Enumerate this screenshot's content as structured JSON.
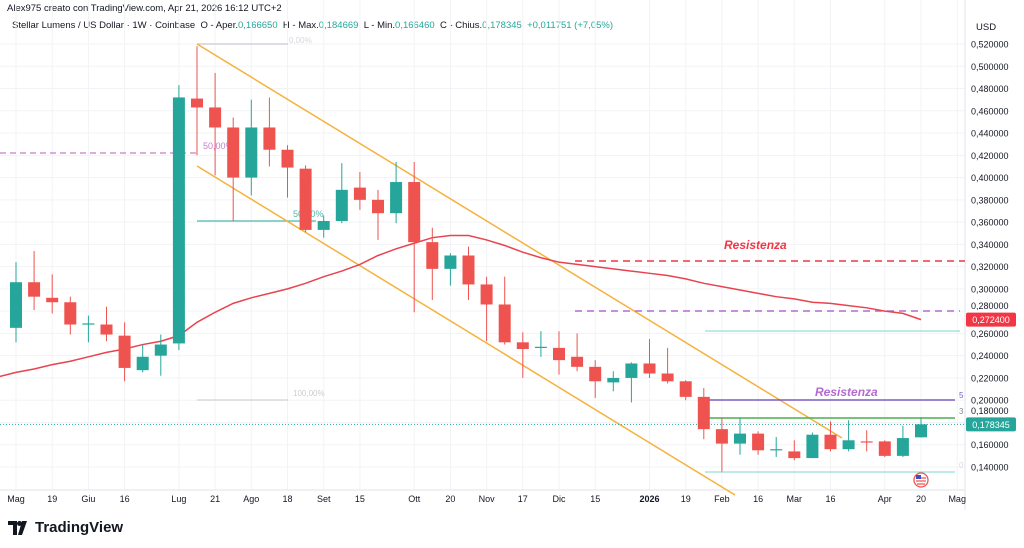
{
  "header": {
    "credit": "Alex975 creato con TradingView.com, Apr 21, 2026 16:12 UTC+2",
    "symbol": "Stellar Lumens / US Dollar · 1W · Coinbase",
    "open_label": "O - Aper.",
    "open": "0,166650",
    "high_label": "H - Max.",
    "high": "0,184669",
    "low_label": "L - Min.",
    "low": "0,166460",
    "close_label": "C - Chius.",
    "close": "0,178345",
    "change": "+0,011751 (+7,05%)"
  },
  "currency": "USD",
  "brand": "TradingView",
  "colors": {
    "up": "#26a69a",
    "down": "#ef5350",
    "ma": "#e8434f",
    "channel": "#f6b13d",
    "resistance_red": "#f23645",
    "resistance_purple": "#b46bd0",
    "fib_purple": "#c77dc9",
    "green_line": "#4caf50",
    "teal_line": "#7fd4cb"
  },
  "chart_data": {
    "type": "candlestick",
    "title": "",
    "ylim": [
      0.13,
      0.525
    ],
    "y_ticks": [
      "0,140000",
      "0,160000",
      "0,180000",
      "0,200000",
      "0,220000",
      "0,240000",
      "0,260000",
      "0,280000",
      "0,300000",
      "0,320000",
      "0,340000",
      "0,360000",
      "0,380000",
      "0,400000",
      "0,420000",
      "0,440000",
      "0,460000",
      "0,480000",
      "0,500000",
      "0,520000"
    ],
    "y_tick_values": [
      0.14,
      0.16,
      0.18,
      0.2,
      0.22,
      0.24,
      0.26,
      0.28,
      0.3,
      0.32,
      0.34,
      0.36,
      0.38,
      0.4,
      0.42,
      0.44,
      0.46,
      0.48,
      0.5,
      0.52
    ],
    "x_ticks": [
      {
        "label": "Mag",
        "candle": 0
      },
      {
        "label": "19",
        "candle": 2
      },
      {
        "label": "Giu",
        "candle": 4
      },
      {
        "label": "16",
        "candle": 6
      },
      {
        "label": "Lug",
        "candle": 9
      },
      {
        "label": "21",
        "candle": 11
      },
      {
        "label": "Ago",
        "candle": 13
      },
      {
        "label": "18",
        "candle": 15
      },
      {
        "label": "Set",
        "candle": 17
      },
      {
        "label": "15",
        "candle": 19
      },
      {
        "label": "Ott",
        "candle": 22
      },
      {
        "label": "20",
        "candle": 24
      },
      {
        "label": "Nov",
        "candle": 26
      },
      {
        "label": "17",
        "candle": 28
      },
      {
        "label": "Dic",
        "candle": 30
      },
      {
        "label": "15",
        "candle": 32
      },
      {
        "label": "2026",
        "candle": 35,
        "bold": true
      },
      {
        "label": "19",
        "candle": 37
      },
      {
        "label": "Feb",
        "candle": 39
      },
      {
        "label": "16",
        "candle": 41
      },
      {
        "label": "Mar",
        "candle": 43
      },
      {
        "label": "16",
        "candle": 45
      },
      {
        "label": "Apr",
        "candle": 48
      },
      {
        "label": "20",
        "candle": 50
      },
      {
        "label": "Mag",
        "candle": 52
      }
    ],
    "candles": [
      [
        0.265,
        0.324,
        0.252,
        0.306
      ],
      [
        0.306,
        0.334,
        0.281,
        0.293
      ],
      [
        0.292,
        0.313,
        0.278,
        0.288
      ],
      [
        0.288,
        0.293,
        0.259,
        0.268
      ],
      [
        0.268,
        0.276,
        0.252,
        0.269
      ],
      [
        0.268,
        0.284,
        0.253,
        0.259
      ],
      [
        0.258,
        0.27,
        0.217,
        0.229
      ],
      [
        0.227,
        0.25,
        0.225,
        0.239
      ],
      [
        0.24,
        0.259,
        0.222,
        0.25
      ],
      [
        0.251,
        0.483,
        0.245,
        0.472
      ],
      [
        0.471,
        0.518,
        0.42,
        0.463
      ],
      [
        0.463,
        0.494,
        0.402,
        0.445
      ],
      [
        0.445,
        0.454,
        0.361,
        0.4
      ],
      [
        0.4,
        0.47,
        0.384,
        0.445
      ],
      [
        0.445,
        0.472,
        0.41,
        0.425
      ],
      [
        0.425,
        0.429,
        0.382,
        0.409
      ],
      [
        0.408,
        0.411,
        0.351,
        0.353
      ],
      [
        0.353,
        0.366,
        0.346,
        0.361
      ],
      [
        0.361,
        0.413,
        0.359,
        0.389
      ],
      [
        0.391,
        0.405,
        0.371,
        0.38
      ],
      [
        0.38,
        0.389,
        0.344,
        0.368
      ],
      [
        0.368,
        0.414,
        0.359,
        0.396
      ],
      [
        0.396,
        0.414,
        0.279,
        0.342
      ],
      [
        0.342,
        0.355,
        0.29,
        0.318
      ],
      [
        0.318,
        0.332,
        0.303,
        0.33
      ],
      [
        0.33,
        0.338,
        0.29,
        0.304
      ],
      [
        0.304,
        0.311,
        0.253,
        0.286
      ],
      [
        0.286,
        0.311,
        0.25,
        0.252
      ],
      [
        0.252,
        0.261,
        0.22,
        0.246
      ],
      [
        0.247,
        0.262,
        0.239,
        0.248
      ],
      [
        0.247,
        0.262,
        0.223,
        0.236
      ],
      [
        0.239,
        0.26,
        0.226,
        0.23
      ],
      [
        0.23,
        0.236,
        0.202,
        0.217
      ],
      [
        0.216,
        0.226,
        0.208,
        0.22
      ],
      [
        0.22,
        0.234,
        0.198,
        0.233
      ],
      [
        0.233,
        0.255,
        0.22,
        0.224
      ],
      [
        0.224,
        0.247,
        0.215,
        0.217
      ],
      [
        0.217,
        0.218,
        0.2,
        0.203
      ],
      [
        0.203,
        0.211,
        0.165,
        0.174
      ],
      [
        0.174,
        0.184,
        0.136,
        0.161
      ],
      [
        0.161,
        0.184,
        0.151,
        0.17
      ],
      [
        0.17,
        0.172,
        0.151,
        0.155
      ],
      [
        0.155,
        0.167,
        0.149,
        0.156
      ],
      [
        0.154,
        0.164,
        0.146,
        0.148
      ],
      [
        0.148,
        0.171,
        0.148,
        0.169
      ],
      [
        0.169,
        0.181,
        0.154,
        0.156
      ],
      [
        0.156,
        0.182,
        0.154,
        0.164
      ],
      [
        0.163,
        0.173,
        0.154,
        0.162
      ],
      [
        0.163,
        0.164,
        0.149,
        0.15
      ],
      [
        0.15,
        0.177,
        0.149,
        0.166
      ],
      [
        0.16665,
        0.184669,
        0.16646,
        0.178345
      ]
    ],
    "candle_fields": [
      "open",
      "high",
      "low",
      "close"
    ],
    "moving_average": [
      0.225,
      0.228,
      0.232,
      0.235,
      0.239,
      0.243,
      0.246,
      0.25,
      0.253,
      0.258,
      0.27,
      0.279,
      0.287,
      0.292,
      0.296,
      0.3,
      0.305,
      0.311,
      0.316,
      0.322,
      0.33,
      0.336,
      0.341,
      0.346,
      0.348,
      0.348,
      0.344,
      0.339,
      0.333,
      0.328,
      0.324,
      0.322,
      0.32,
      0.318,
      0.316,
      0.314,
      0.312,
      0.309,
      0.305,
      0.302,
      0.299,
      0.296,
      0.293,
      0.291,
      0.288,
      0.287,
      0.285,
      0.283,
      0.28,
      0.278,
      0.2724
    ],
    "price_labels": [
      {
        "text": "0,272400",
        "value": 0.2724,
        "color": "#f23645"
      },
      {
        "text": "0,178345",
        "value": 0.178345,
        "color": "#26a69a"
      }
    ],
    "annotations": {
      "resistance_red": "Resistenza",
      "resistance_purple": "Resistenza",
      "fib_0": "0,00%",
      "fib_50a": "50,00%",
      "fib_50b": "50,00%",
      "fib_100": "100,00%",
      "line_5": "5",
      "line_3": "3",
      "line_0": "0"
    },
    "levels": {
      "red_dashed": 0.324,
      "purple_dashed": 0.28,
      "left_purple_dashed": 0.42,
      "teal_upper": 0.262,
      "purple_solid": 0.2,
      "green_solid": 0.184,
      "teal_lower": 0.136
    }
  }
}
